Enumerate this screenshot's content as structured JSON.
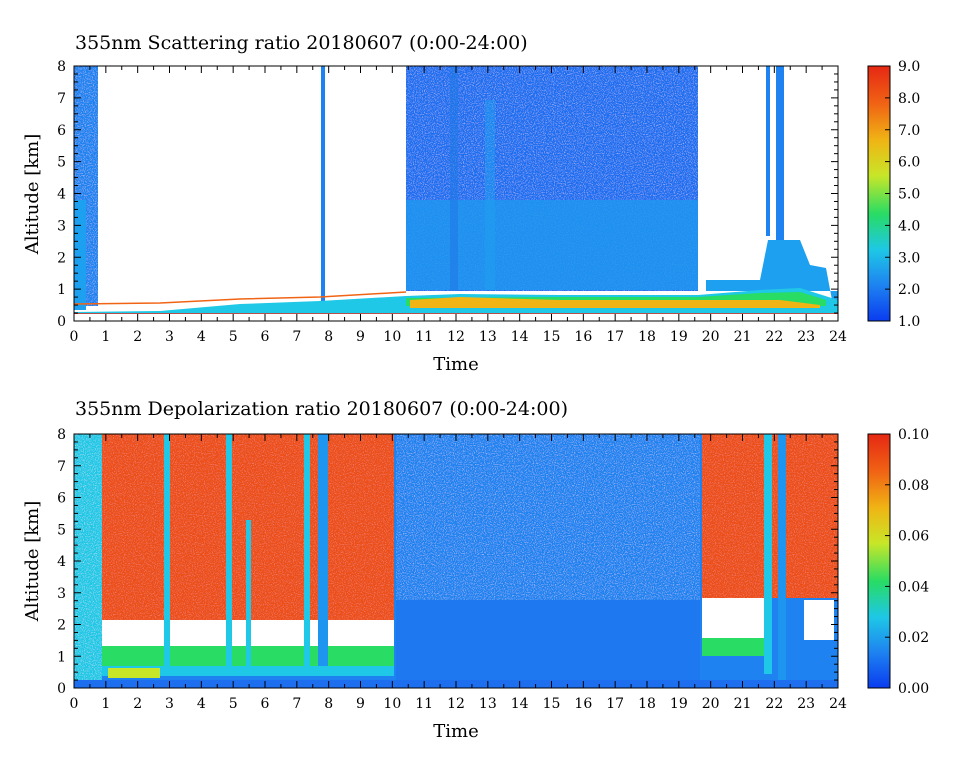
{
  "chart_data": [
    {
      "type": "heatmap",
      "title": "355nm Scattering ratio  20180607 (0:00-24:00)",
      "xlabel": "Time",
      "ylabel": "Altitude [km]",
      "xlim": [
        0,
        24
      ],
      "ylim": [
        0,
        8
      ],
      "x_ticks": [
        "0",
        "1",
        "2",
        "3",
        "4",
        "5",
        "6",
        "7",
        "8",
        "9",
        "10",
        "11",
        "12",
        "13",
        "14",
        "15",
        "16",
        "17",
        "18",
        "19",
        "20",
        "21",
        "22",
        "23",
        "24"
      ],
      "y_ticks": [
        "0",
        "1",
        "2",
        "3",
        "4",
        "5",
        "6",
        "7",
        "8"
      ],
      "colorbar": {
        "range": [
          1.0,
          9.0
        ],
        "ticks": [
          "1.0",
          "2.0",
          "3.0",
          "4.0",
          "5.0",
          "6.0",
          "7.0",
          "8.0",
          "9.0"
        ],
        "colors": [
          "#0a3cf0",
          "#1e82f0",
          "#1ec8e6",
          "#28dc64",
          "#c8e628",
          "#f0b414",
          "#f06414",
          "#e62814"
        ]
      }
    },
    {
      "type": "heatmap",
      "title": "355nm Depolarization ratio  20180607 (0:00-24:00)",
      "xlabel": "Time",
      "ylabel": "Altitude [km]",
      "xlim": [
        0,
        24
      ],
      "ylim": [
        0,
        8
      ],
      "x_ticks": [
        "0",
        "1",
        "2",
        "3",
        "4",
        "5",
        "6",
        "7",
        "8",
        "9",
        "10",
        "11",
        "12",
        "13",
        "14",
        "15",
        "16",
        "17",
        "18",
        "19",
        "20",
        "21",
        "22",
        "23",
        "24"
      ],
      "y_ticks": [
        "0",
        "1",
        "2",
        "3",
        "4",
        "5",
        "6",
        "7",
        "8"
      ],
      "colorbar": {
        "range": [
          0.0,
          0.1
        ],
        "ticks": [
          "0.00",
          "0.02",
          "0.04",
          "0.06",
          "0.08",
          "0.10"
        ],
        "colors": [
          "#0a3cf0",
          "#1e82f0",
          "#1ec8e6",
          "#28dc64",
          "#c8e628",
          "#f0b414",
          "#f06414",
          "#e62814"
        ]
      }
    }
  ]
}
